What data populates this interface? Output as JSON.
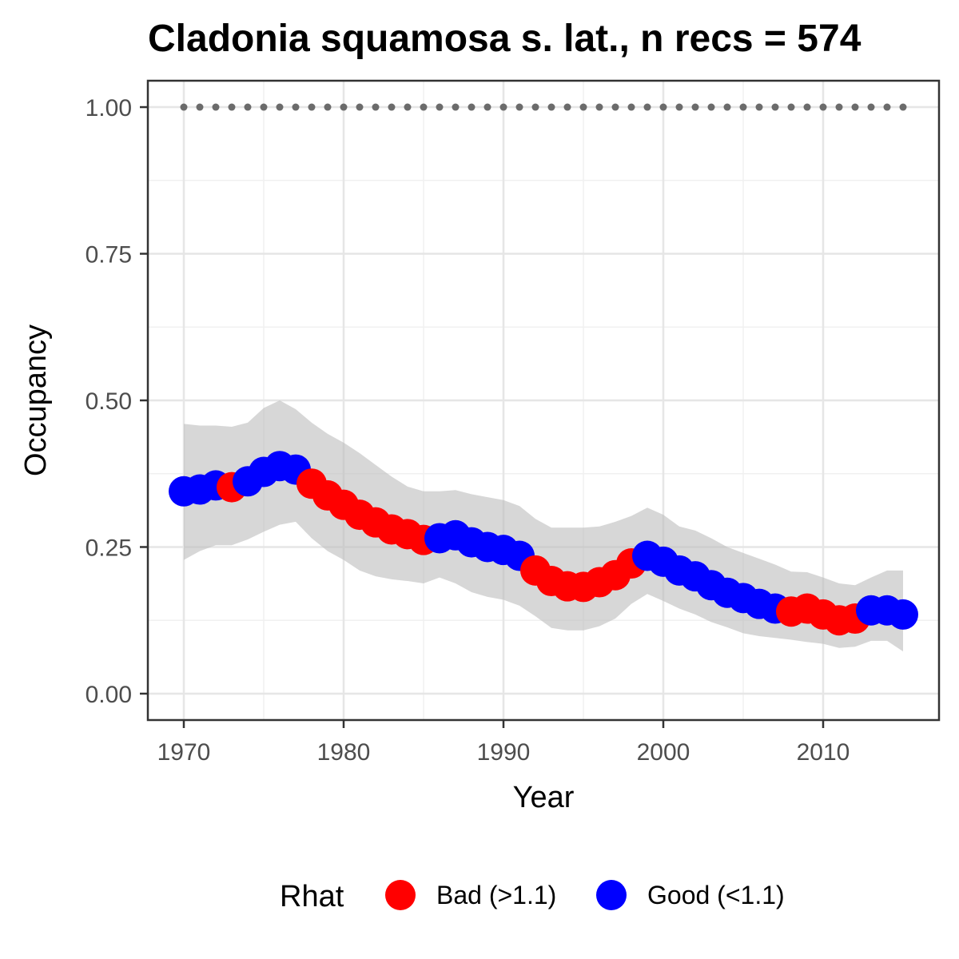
{
  "chart_data": {
    "type": "line",
    "title": "Cladonia squamosa s. lat., n recs = 574",
    "xlabel": "Year",
    "ylabel": "Occupancy",
    "xlim": [
      1968.2,
      1971.0
    ],
    "x_ticks": [
      1970,
      1980,
      1990,
      2000,
      2010
    ],
    "x_tick_labels": [
      "1970",
      "1980",
      "1990",
      "2000",
      "2010"
    ],
    "ylim": [
      -0.045,
      1.045
    ],
    "y_ticks": [
      0.0,
      0.25,
      0.5,
      0.75,
      1.0
    ],
    "y_tick_labels": [
      "0.00",
      "0.25",
      "0.50",
      "0.75",
      "1.00"
    ],
    "grid": true,
    "legend": {
      "title": "Rhat",
      "position": "bottom",
      "entries": [
        {
          "key": "bad",
          "label": "Bad (>1.1)",
          "color": "#ff0000"
        },
        {
          "key": "good",
          "label": "Good (<1.1)",
          "color": "#0000ff"
        }
      ]
    },
    "reference_line": {
      "y": 1.0,
      "style": "dotted",
      "color": "#6b6b6b"
    },
    "band_color": "#bdbdbd",
    "years": [
      1970,
      1971,
      1972,
      1973,
      1974,
      1975,
      1976,
      1977,
      1978,
      1979,
      1980,
      1981,
      1982,
      1983,
      1984,
      1985,
      1986,
      1987,
      1988,
      1989,
      1990,
      1991,
      1992,
      1993,
      1994,
      1995,
      1996,
      1997,
      1998,
      1999,
      2000,
      2001,
      2002,
      2003,
      2004,
      2005,
      2006,
      2007,
      2008,
      2009,
      2010,
      2011,
      2012,
      2013,
      2014,
      2015
    ],
    "occupancy": [
      0.345,
      0.348,
      0.355,
      0.352,
      0.362,
      0.378,
      0.388,
      0.382,
      0.358,
      0.338,
      0.322,
      0.305,
      0.292,
      0.28,
      0.272,
      0.262,
      0.265,
      0.27,
      0.258,
      0.25,
      0.245,
      0.235,
      0.21,
      0.192,
      0.183,
      0.182,
      0.19,
      0.202,
      0.222,
      0.235,
      0.225,
      0.21,
      0.2,
      0.185,
      0.172,
      0.163,
      0.153,
      0.145,
      0.14,
      0.145,
      0.135,
      0.125,
      0.128,
      0.142,
      0.142,
      0.135
    ],
    "lower": [
      0.228,
      0.243,
      0.253,
      0.253,
      0.263,
      0.276,
      0.288,
      0.293,
      0.265,
      0.243,
      0.228,
      0.21,
      0.2,
      0.195,
      0.192,
      0.188,
      0.198,
      0.188,
      0.173,
      0.165,
      0.16,
      0.15,
      0.132,
      0.112,
      0.108,
      0.108,
      0.115,
      0.128,
      0.153,
      0.17,
      0.158,
      0.145,
      0.135,
      0.122,
      0.113,
      0.103,
      0.098,
      0.095,
      0.092,
      0.088,
      0.085,
      0.078,
      0.08,
      0.09,
      0.09,
      0.072
    ],
    "upper": [
      0.46,
      0.457,
      0.457,
      0.455,
      0.462,
      0.487,
      0.5,
      0.485,
      0.462,
      0.443,
      0.428,
      0.41,
      0.39,
      0.37,
      0.353,
      0.345,
      0.345,
      0.347,
      0.34,
      0.335,
      0.33,
      0.32,
      0.298,
      0.283,
      0.283,
      0.283,
      0.285,
      0.293,
      0.303,
      0.317,
      0.305,
      0.285,
      0.278,
      0.265,
      0.25,
      0.24,
      0.23,
      0.22,
      0.208,
      0.207,
      0.198,
      0.188,
      0.185,
      0.198,
      0.21,
      0.21
    ],
    "rhat": [
      "good",
      "good",
      "good",
      "bad",
      "good",
      "good",
      "good",
      "good",
      "bad",
      "bad",
      "bad",
      "bad",
      "bad",
      "bad",
      "bad",
      "bad",
      "good",
      "good",
      "good",
      "good",
      "good",
      "good",
      "bad",
      "bad",
      "bad",
      "bad",
      "bad",
      "bad",
      "bad",
      "good",
      "good",
      "good",
      "good",
      "good",
      "good",
      "good",
      "good",
      "good",
      "bad",
      "bad",
      "bad",
      "bad",
      "bad",
      "good",
      "good",
      "good"
    ]
  }
}
